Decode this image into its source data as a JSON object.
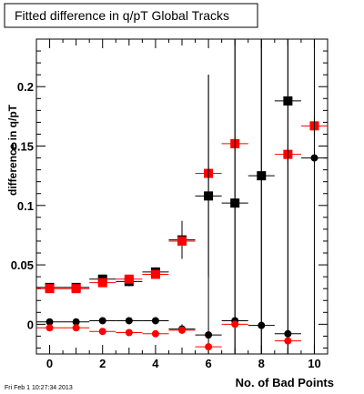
{
  "chart_data": {
    "type": "scatter",
    "title": "Fitted difference in q/pT  Global Tracks",
    "xlabel": "No. of Bad Points",
    "ylabel": "difference in q/pT",
    "footer": "Fri Feb  1 10:27:34 2013",
    "xlim": [
      -0.5,
      10.5
    ],
    "ylim": [
      -0.025,
      0.24
    ],
    "x_ticks": [
      0,
      2,
      4,
      6,
      8,
      10
    ],
    "y_ticks": [
      0,
      0.05,
      0.1,
      0.15,
      0.2
    ],
    "x_tick_labels": [
      "0",
      "2",
      "4",
      "6",
      "8",
      "10"
    ],
    "y_tick_labels": [
      "0",
      "0.05",
      "0.1",
      "0.15",
      "0.2"
    ],
    "grid": false,
    "series": [
      {
        "color": "#000000",
        "marker": "square",
        "points": [
          {
            "x": 0,
            "y": 0.031,
            "ylo": 0.029,
            "yhi": 0.033
          },
          {
            "x": 1,
            "y": 0.031,
            "ylo": 0.029,
            "yhi": 0.033
          },
          {
            "x": 2,
            "y": 0.038,
            "ylo": 0.035,
            "yhi": 0.041
          },
          {
            "x": 3,
            "y": 0.036,
            "ylo": 0.032,
            "yhi": 0.04
          },
          {
            "x": 4,
            "y": 0.044,
            "ylo": 0.04,
            "yhi": 0.048
          },
          {
            "x": 5,
            "y": 0.071,
            "ylo": 0.055,
            "yhi": 0.087
          },
          {
            "x": 6,
            "y": 0.108,
            "ylo": 0.04,
            "yhi": 0.21
          },
          {
            "x": 7,
            "y": 0.102,
            "ylo": -0.025,
            "yhi": 0.24
          },
          {
            "x": 8,
            "y": 0.125,
            "ylo": -0.025,
            "yhi": 0.24
          },
          {
            "x": 9,
            "y": 0.188,
            "ylo": -0.025,
            "yhi": 0.24
          },
          {
            "x": 10,
            "y": null
          }
        ]
      },
      {
        "color": "#ff0000",
        "marker": "square",
        "points": [
          {
            "x": 0,
            "y": 0.03,
            "ylo": 0.029,
            "yhi": 0.031
          },
          {
            "x": 1,
            "y": 0.03,
            "ylo": 0.029,
            "yhi": 0.031
          },
          {
            "x": 2,
            "y": 0.035,
            "ylo": 0.033,
            "yhi": 0.037
          },
          {
            "x": 3,
            "y": 0.038,
            "ylo": 0.036,
            "yhi": 0.04
          },
          {
            "x": 4,
            "y": 0.042,
            "ylo": 0.04,
            "yhi": 0.044
          },
          {
            "x": 5,
            "y": 0.07,
            "ylo": 0.066,
            "yhi": 0.074
          },
          {
            "x": 6,
            "y": 0.127,
            "ylo": 0.121,
            "yhi": 0.133
          },
          {
            "x": 7,
            "y": 0.152,
            "ylo": 0.146,
            "yhi": 0.158
          },
          {
            "x": 8,
            "y": null
          },
          {
            "x": 9,
            "y": 0.143,
            "ylo": 0.135,
            "yhi": 0.151
          },
          {
            "x": 10,
            "y": 0.167,
            "ylo": 0.16,
            "yhi": 0.174
          }
        ]
      },
      {
        "color": "#000000",
        "marker": "circle",
        "points": [
          {
            "x": 0,
            "y": 0.002,
            "ylo": 0.001,
            "yhi": 0.003
          },
          {
            "x": 1,
            "y": 0.002,
            "ylo": 0.001,
            "yhi": 0.003
          },
          {
            "x": 2,
            "y": 0.003,
            "ylo": 0.002,
            "yhi": 0.004
          },
          {
            "x": 3,
            "y": 0.003,
            "ylo": 0.002,
            "yhi": 0.004
          },
          {
            "x": 4,
            "y": 0.003,
            "ylo": 0.002,
            "yhi": 0.004
          },
          {
            "x": 5,
            "y": -0.004,
            "ylo": -0.008,
            "yhi": 0.0
          },
          {
            "x": 6,
            "y": -0.009,
            "ylo": -0.025,
            "yhi": 0.21
          },
          {
            "x": 7,
            "y": 0.003,
            "ylo": -0.025,
            "yhi": 0.24
          },
          {
            "x": 8,
            "y": -0.001,
            "ylo": -0.025,
            "yhi": 0.24
          },
          {
            "x": 9,
            "y": -0.008,
            "ylo": -0.025,
            "yhi": 0.24
          },
          {
            "x": 10,
            "y": 0.14,
            "ylo": -0.025,
            "yhi": 0.24
          }
        ]
      },
      {
        "color": "#ff0000",
        "marker": "circle",
        "points": [
          {
            "x": 0,
            "y": -0.003,
            "ylo": -0.004,
            "yhi": -0.002
          },
          {
            "x": 1,
            "y": -0.003,
            "ylo": -0.004,
            "yhi": -0.002
          },
          {
            "x": 2,
            "y": -0.006,
            "ylo": -0.007,
            "yhi": -0.005
          },
          {
            "x": 3,
            "y": -0.007,
            "ylo": -0.008,
            "yhi": -0.006
          },
          {
            "x": 4,
            "y": -0.008,
            "ylo": -0.009,
            "yhi": -0.007
          },
          {
            "x": 5,
            "y": -0.005,
            "ylo": -0.007,
            "yhi": -0.003
          },
          {
            "x": 6,
            "y": -0.019,
            "ylo": -0.022,
            "yhi": -0.016
          },
          {
            "x": 7,
            "y": 0.0,
            "ylo": -0.003,
            "yhi": 0.003
          },
          {
            "x": 8,
            "y": null
          },
          {
            "x": 9,
            "y": -0.014,
            "ylo": -0.017,
            "yhi": -0.011
          },
          {
            "x": 10,
            "y": null
          }
        ]
      }
    ]
  }
}
